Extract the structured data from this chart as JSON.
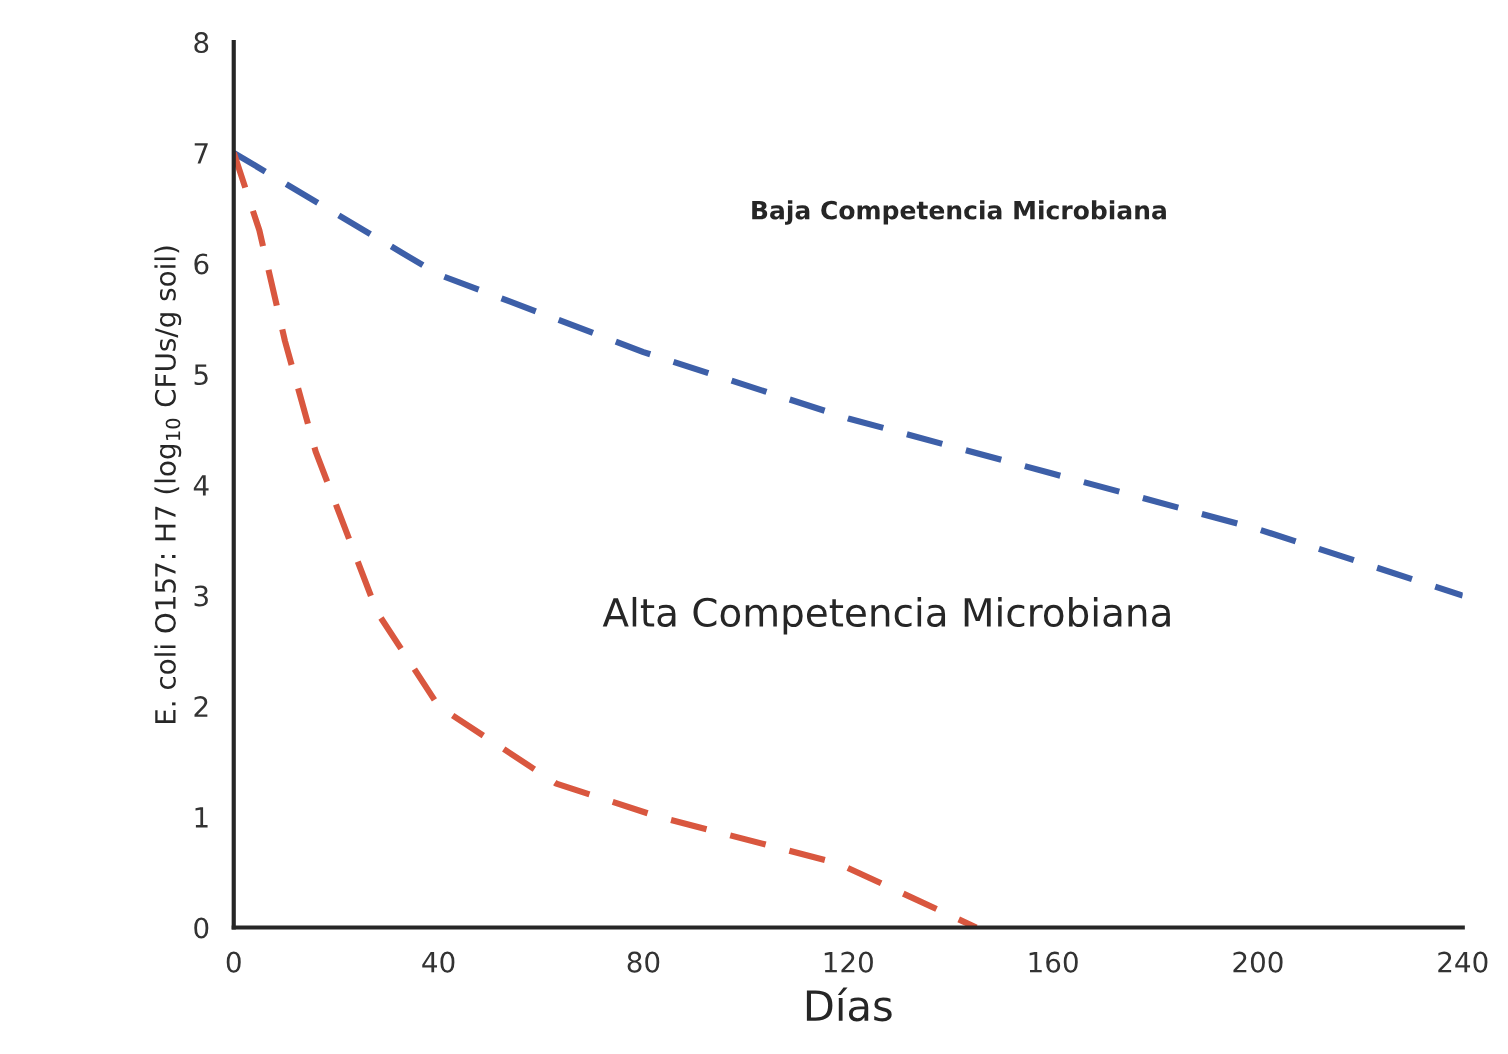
{
  "chart_data": {
    "type": "line",
    "xlabel": "Días",
    "ylabel": "E. coli O157: H7 (log$_{10}$ CFUs/g soil)",
    "xlim": [
      0,
      240
    ],
    "xticks": [
      0,
      40,
      80,
      120,
      160,
      200,
      240
    ],
    "ylim": [
      0,
      8
    ],
    "yticks": [
      0,
      1,
      2,
      3,
      4,
      5,
      6,
      7,
      8
    ],
    "grid": false,
    "line_style": "dashed",
    "marker": "none",
    "annotations": [
      "Baja Competencia Microbiana",
      "Alta Competencia Microbiana"
    ],
    "series": [
      {
        "color": "#3d5fa8",
        "x": [
          0,
          40,
          80,
          120,
          160,
          200,
          240
        ],
        "values": [
          7,
          5.9,
          5.2,
          4.6,
          4.1,
          3.6,
          3.0
        ]
      },
      {
        "color": "#d9573f",
        "x": [
          0,
          5,
          10,
          16,
          28,
          40,
          63,
          83,
          118,
          145
        ],
        "values": [
          7,
          6.3,
          5.3,
          4.3,
          2.85,
          2.0,
          1.3,
          1.0,
          0.58,
          0
        ]
      }
    ]
  }
}
